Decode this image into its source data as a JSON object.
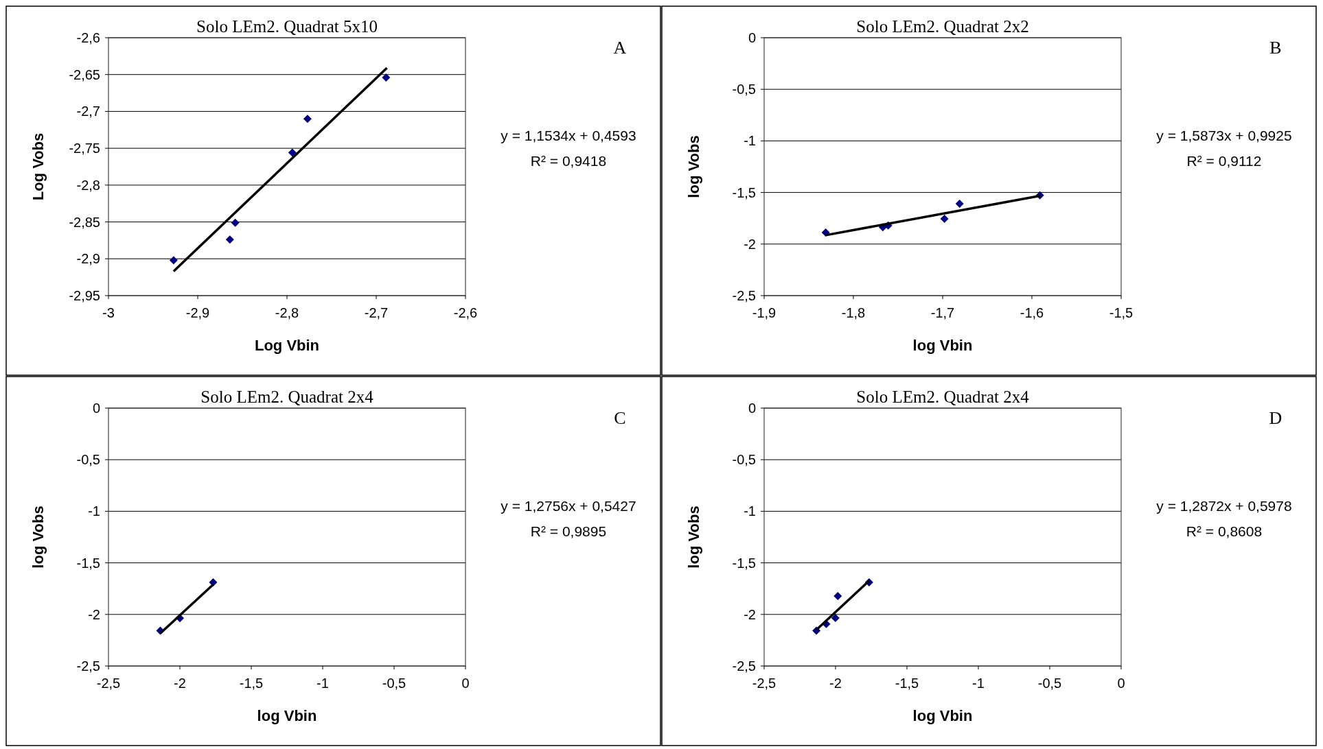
{
  "chart_data": [
    {
      "type": "scatter",
      "title": "Solo LEm2. Quadrat 5x10",
      "xlabel": "Log Vbin",
      "ylabel": "Log Vobs",
      "xlim": [
        -3,
        -2.6
      ],
      "ylim": [
        -2.95,
        -2.6
      ],
      "xticks": [
        -3,
        {
          "value": -2.9,
          "label": "-2,9"
        },
        {
          "value": -2.8,
          "label": "-2,8"
        },
        {
          "value": -2.7,
          "label": "-2,7"
        },
        {
          "value": -2.6,
          "label": "-2,6"
        }
      ],
      "yticks": [
        {
          "value": -2.95,
          "label": "-2,95"
        },
        {
          "value": -2.9,
          "label": "-2,9"
        },
        {
          "value": -2.85,
          "label": "-2,85"
        },
        {
          "value": -2.8,
          "label": "-2,8"
        },
        {
          "value": -2.75,
          "label": "-2,75"
        },
        {
          "value": -2.7,
          "label": "-2,7"
        },
        {
          "value": -2.65,
          "label": "-2,65"
        },
        {
          "value": -2.6,
          "label": "-2,6"
        }
      ],
      "grid": "y",
      "series": [
        {
          "type": "scatter",
          "marker": "diamond",
          "color": "#000080",
          "x": [
            -2.927,
            -2.864,
            -2.858,
            -2.794,
            -2.777,
            -2.689
          ],
          "values": [
            -2.902,
            -2.874,
            -2.851,
            -2.756,
            -2.71,
            -2.654
          ]
        },
        {
          "type": "line",
          "color": "#000000",
          "x": [
            -2.927,
            -2.688
          ],
          "values": [
            -2.917,
            -2.641
          ]
        }
      ],
      "annotations": [
        "y = 1,1534x + 0,4593",
        "R² = 0,9418",
        "A"
      ]
    },
    {
      "type": "scatter",
      "title": "Solo LEm2. Quadrat 2x2",
      "xlabel": "log Vbin",
      "ylabel": "log Vobs",
      "xlim": [
        -1.9,
        -1.5
      ],
      "ylim": [
        -2.5,
        0
      ],
      "xticks": [
        {
          "value": -1.9,
          "label": "-1,9"
        },
        {
          "value": -1.8,
          "label": "-1,8"
        },
        {
          "value": -1.7,
          "label": "-1,7"
        },
        {
          "value": -1.6,
          "label": "-1,6"
        },
        {
          "value": -1.5,
          "label": "-1,5"
        }
      ],
      "yticks": [
        {
          "value": -2.5,
          "label": "-2,5"
        },
        -2,
        {
          "value": -1.5,
          "label": "-1,5"
        },
        -1,
        {
          "value": -0.5,
          "label": "-0,5"
        },
        0
      ],
      "grid": "y",
      "series": [
        {
          "type": "scatter",
          "marker": "diamond",
          "color": "#000080",
          "x": [
            -1.831,
            -1.767,
            -1.761,
            -1.698,
            -1.681,
            -1.591
          ],
          "values": [
            -1.889,
            -1.837,
            -1.82,
            -1.756,
            -1.609,
            -1.528
          ]
        },
        {
          "type": "line",
          "color": "#000000",
          "x": [
            -1.831,
            -1.591
          ],
          "values": [
            -1.914,
            -1.533
          ]
        }
      ],
      "annotations": [
        "y = 1,5873x + 0,9925",
        "R² = 0,9112",
        "B"
      ]
    },
    {
      "type": "scatter",
      "title": "Solo LEm2. Quadrat 2x4",
      "xlabel": "log Vbin",
      "ylabel": "log Vobs",
      "xlim": [
        -2.5,
        0
      ],
      "ylim": [
        -2.5,
        0
      ],
      "xticks": [
        {
          "value": -2.5,
          "label": "-2,5"
        },
        -2,
        {
          "value": -1.5,
          "label": "-1,5"
        },
        -1,
        {
          "value": -0.5,
          "label": "-0,5"
        },
        0
      ],
      "yticks": [
        {
          "value": -2.5,
          "label": "-2,5"
        },
        -2,
        {
          "value": -1.5,
          "label": "-1,5"
        },
        -1,
        {
          "value": -0.5,
          "label": "-0,5"
        },
        0
      ],
      "grid": "y",
      "series": [
        {
          "type": "scatter",
          "marker": "diamond",
          "color": "#000080",
          "x": [
            -2.137,
            -2.0,
            -1.767
          ],
          "values": [
            -2.157,
            -2.036,
            -1.689
          ]
        },
        {
          "type": "line",
          "color": "#000000",
          "x": [
            -2.137,
            -1.767
          ],
          "values": [
            -2.183,
            -1.711
          ]
        }
      ],
      "annotations": [
        "y = 1,2756x + 0,5427",
        "R² = 0,9895",
        "C"
      ]
    },
    {
      "type": "scatter",
      "title": "Solo LEm2. Quadrat 2x4",
      "xlabel": "log Vbin",
      "ylabel": "log Vobs",
      "xlim": [
        -2.5,
        0
      ],
      "ylim": [
        -2.5,
        0
      ],
      "xticks": [
        {
          "value": -2.5,
          "label": "-2,5"
        },
        -2,
        {
          "value": -1.5,
          "label": "-1,5"
        },
        -1,
        {
          "value": -0.5,
          "label": "-0,5"
        },
        0
      ],
      "yticks": [
        {
          "value": -2.5,
          "label": "-2,5"
        },
        -2,
        {
          "value": -1.5,
          "label": "-1,5"
        },
        -1,
        {
          "value": -0.5,
          "label": "-0,5"
        },
        0
      ],
      "grid": "y",
      "series": [
        {
          "type": "scatter",
          "marker": "diamond",
          "color": "#000080",
          "x": [
            -2.134,
            -2.065,
            -2.001,
            -1.984,
            -1.765
          ],
          "values": [
            -2.157,
            -2.093,
            -2.034,
            -1.822,
            -1.689
          ]
        },
        {
          "type": "line",
          "color": "#000000",
          "x": [
            -2.134,
            -1.765
          ],
          "values": [
            -2.149,
            -1.674
          ]
        }
      ],
      "annotations": [
        "y = 1,2872x + 0,5978",
        "R² = 0,8608",
        "D"
      ]
    }
  ]
}
